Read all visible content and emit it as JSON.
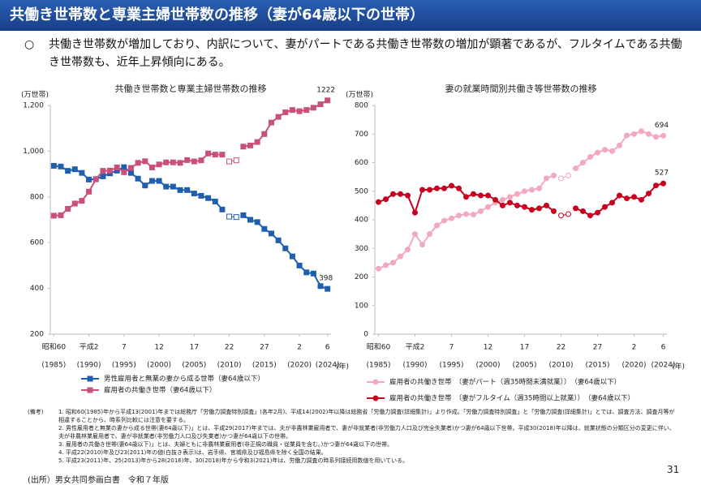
{
  "header": {
    "title": "共働き世帯数と専業主婦世帯数の推移（妻が64歳以下の世帯）"
  },
  "bullet": {
    "mark": "○",
    "text": "共働き世帯数が増加しており、内訳について、妻がパートである共働き世帯数の増加が顕著であるが、フルタイムである共働き世帯数も、近年上昇傾向にある。"
  },
  "chart_data": [
    {
      "type": "line",
      "title": "共働き世帯数と専業主婦世帯数の推移",
      "y_label": "(万世帯)",
      "x_label": "(年)",
      "x": [
        1985,
        1986,
        1987,
        1988,
        1989,
        1990,
        1991,
        1992,
        1993,
        1994,
        1995,
        1996,
        1997,
        1998,
        1999,
        2000,
        2001,
        2002,
        2003,
        2004,
        2005,
        2006,
        2007,
        2008,
        2009,
        2010,
        2011,
        2012,
        2013,
        2014,
        2015,
        2016,
        2017,
        2018,
        2019,
        2020,
        2021,
        2022,
        2023,
        2024
      ],
      "xlim": [
        1984.5,
        2024.5
      ],
      "xticks": [
        {
          "value": 1985,
          "label": "昭和60"
        },
        {
          "value": 1990,
          "label": "平成2"
        },
        {
          "value": 1995,
          "label": "7"
        },
        {
          "value": 2000,
          "label": "12"
        },
        {
          "value": 2005,
          "label": "17"
        },
        {
          "value": 2010,
          "label": "22"
        },
        {
          "value": 2015,
          "label": "27"
        },
        {
          "value": 2020,
          "label": "2"
        },
        {
          "value": 2024,
          "label": "6"
        }
      ],
      "xtick_years": [
        "(1985)",
        "(1990)",
        "(1995)",
        "(2000)",
        "(2005)",
        "(2010)",
        "(2015)",
        "(2020)",
        "(2024)"
      ],
      "ylim": [
        200,
        1200
      ],
      "yticks": [
        200,
        400,
        600,
        800,
        {
          "value": 1000,
          "label": "1,000"
        },
        {
          "value": 1200,
          "label": "1,200"
        }
      ],
      "grid": false,
      "series": [
        {
          "name": "男性雇用者と無業の妻から成る世帯（妻64歳以下）",
          "color": "#1f5fb0",
          "marker": "square",
          "values": [
            936,
            933,
            914,
            921,
            905,
            876,
            878,
            890,
            903,
            915,
            930,
            905,
            880,
            850,
            870,
            870,
            845,
            845,
            830,
            830,
            815,
            805,
            795,
            780,
            745,
            null,
            null,
            720,
            700,
            690,
            660,
            640,
            610,
            575,
            540,
            500,
            470,
            465,
            410,
            398
          ],
          "hollow_values": [
            null,
            null,
            null,
            null,
            null,
            null,
            null,
            null,
            null,
            null,
            null,
            null,
            null,
            null,
            null,
            null,
            null,
            null,
            null,
            null,
            null,
            null,
            null,
            null,
            null,
            714,
            712,
            null,
            null,
            null,
            null,
            null,
            null,
            null,
            null,
            null,
            null,
            null,
            null,
            null
          ]
        },
        {
          "name": "雇用者の共働き世帯（妻64歳以下）",
          "color": "#c8507a",
          "marker": "square",
          "values": [
            718,
            720,
            748,
            771,
            783,
            823,
            877,
            914,
            915,
            929,
            908,
            927,
            949,
            956,
            929,
            942,
            951,
            951,
            949,
            961,
            955,
            960,
            990,
            985,
            985,
            null,
            null,
            1020,
            1025,
            1040,
            1075,
            1125,
            1150,
            1170,
            1180,
            1175,
            1180,
            1190,
            1205,
            1222
          ],
          "hollow_values": [
            null,
            null,
            null,
            null,
            null,
            null,
            null,
            null,
            null,
            null,
            null,
            null,
            null,
            null,
            null,
            null,
            null,
            null,
            null,
            null,
            null,
            null,
            null,
            null,
            null,
            955,
            960,
            null,
            null,
            null,
            null,
            null,
            null,
            null,
            null,
            null,
            null,
            null,
            null,
            null
          ]
        }
      ]
    },
    {
      "type": "line",
      "title": "妻の就業時間別共働き等世帯数の推移",
      "y_label": "(万世帯)",
      "x_label": "(年)",
      "x": [
        1985,
        1986,
        1987,
        1988,
        1989,
        1990,
        1991,
        1992,
        1993,
        1994,
        1995,
        1996,
        1997,
        1998,
        1999,
        2000,
        2001,
        2002,
        2003,
        2004,
        2005,
        2006,
        2007,
        2008,
        2009,
        2010,
        2011,
        2012,
        2013,
        2014,
        2015,
        2016,
        2017,
        2018,
        2019,
        2020,
        2021,
        2022,
        2023,
        2024
      ],
      "xlim": [
        1984.5,
        2024.5
      ],
      "xticks": [
        {
          "value": 1985,
          "label": "昭和60"
        },
        {
          "value": 1990,
          "label": "平成2"
        },
        {
          "value": 1995,
          "label": "7"
        },
        {
          "value": 2000,
          "label": "12"
        },
        {
          "value": 2005,
          "label": "17"
        },
        {
          "value": 2010,
          "label": "22"
        },
        {
          "value": 2015,
          "label": "27"
        },
        {
          "value": 2020,
          "label": "2"
        },
        {
          "value": 2024,
          "label": "6"
        }
      ],
      "xtick_years": [
        "(1985)",
        "(1990)",
        "(1995)",
        "(2000)",
        "(2005)",
        "(2010)",
        "(2015)",
        "(2020)",
        "(2024)"
      ],
      "ylim": [
        0,
        800
      ],
      "yticks": [
        0,
        100,
        200,
        300,
        400,
        500,
        600,
        700,
        800
      ],
      "grid": false,
      "series": [
        {
          "name": "雇用者の共働き世帯　（妻がパート（週35時間未満就業））　（妻64歳以下）",
          "color": "#f2a9bd",
          "marker": "circle",
          "values": [
            229,
            241,
            250,
            272,
            296,
            350,
            313,
            350,
            380,
            397,
            405,
            415,
            420,
            418,
            430,
            445,
            460,
            470,
            480,
            490,
            500,
            505,
            510,
            545,
            555,
            null,
            null,
            580,
            600,
            620,
            635,
            645,
            640,
            660,
            695,
            700,
            710,
            700,
            690,
            694
          ],
          "hollow_values": [
            null,
            null,
            null,
            null,
            null,
            null,
            null,
            null,
            null,
            null,
            null,
            null,
            null,
            null,
            null,
            null,
            null,
            null,
            null,
            null,
            null,
            null,
            null,
            null,
            null,
            545,
            555,
            null,
            null,
            null,
            null,
            null,
            null,
            null,
            null,
            null,
            null,
            null,
            null,
            null
          ]
        },
        {
          "name": "雇用者の共働き世帯　（妻がフルタイム（週35時間以上就業））　（妻64歳以下）",
          "color": "#c8001e",
          "marker": "circle",
          "values": [
            462,
            472,
            490,
            490,
            485,
            425,
            505,
            505,
            510,
            510,
            519,
            510,
            480,
            490,
            485,
            485,
            470,
            450,
            460,
            450,
            445,
            435,
            440,
            450,
            430,
            null,
            null,
            440,
            430,
            415,
            425,
            445,
            460,
            485,
            475,
            480,
            470,
            492,
            520,
            527
          ],
          "hollow_values": [
            null,
            null,
            null,
            null,
            null,
            null,
            null,
            null,
            null,
            null,
            null,
            null,
            null,
            null,
            null,
            null,
            null,
            null,
            null,
            null,
            null,
            null,
            null,
            null,
            null,
            415,
            420,
            null,
            null,
            null,
            null,
            null,
            null,
            null,
            null,
            null,
            null,
            null,
            null,
            null
          ]
        }
      ]
    }
  ],
  "notes": {
    "label": "(備考)",
    "items": [
      "1. 昭和60(1985)年から平成13(2001)年までは総務庁「労働力調査特別調査」(各年2月)、平成14(2002)年以降は総務省「労働力調査(詳細集計)」より作成。「労働力調査特別調査」と「労働力調査(詳細集計)」とでは、調査方法、調査月等が相違することから、時系列比較には注意を要する。",
      "2. 男性雇用者と無業の妻から成る世帯(妻64歳以下)」とは、平成29(2017)年までは、夫が非農林業雇用者で、妻が非就業者(非労働力人口及び完全失業者)かつ妻が64歳以下世帯。平成30(2018)年以降は、就業状態の分類区分の変更に伴い、夫が非農林業雇用者で、妻が非就業者(非労働力人口及び失業者)かつ妻が64歳以下の世帯。",
      "3. 雇用者の共働き世帯(妻64歳以下)」とは、夫婦ともに非農林業雇用者(非正規の職員・従業員を含む。)かつ妻が64歳以下の世帯。",
      "4. 平成22(2010)年及び23(2011)年の値(白抜き表示)は、岩手県、宮城県及び福島県を除く全国の結果。",
      "5. 平成23(2011)年、25(2013)年から28(2016)年、30(2018)年から令和3(2021)年は、労働力調査の時系列接続用数値を用いている。"
    ]
  },
  "source": "(出所）男女共同参画白書　令和７年版",
  "page_number": "31"
}
